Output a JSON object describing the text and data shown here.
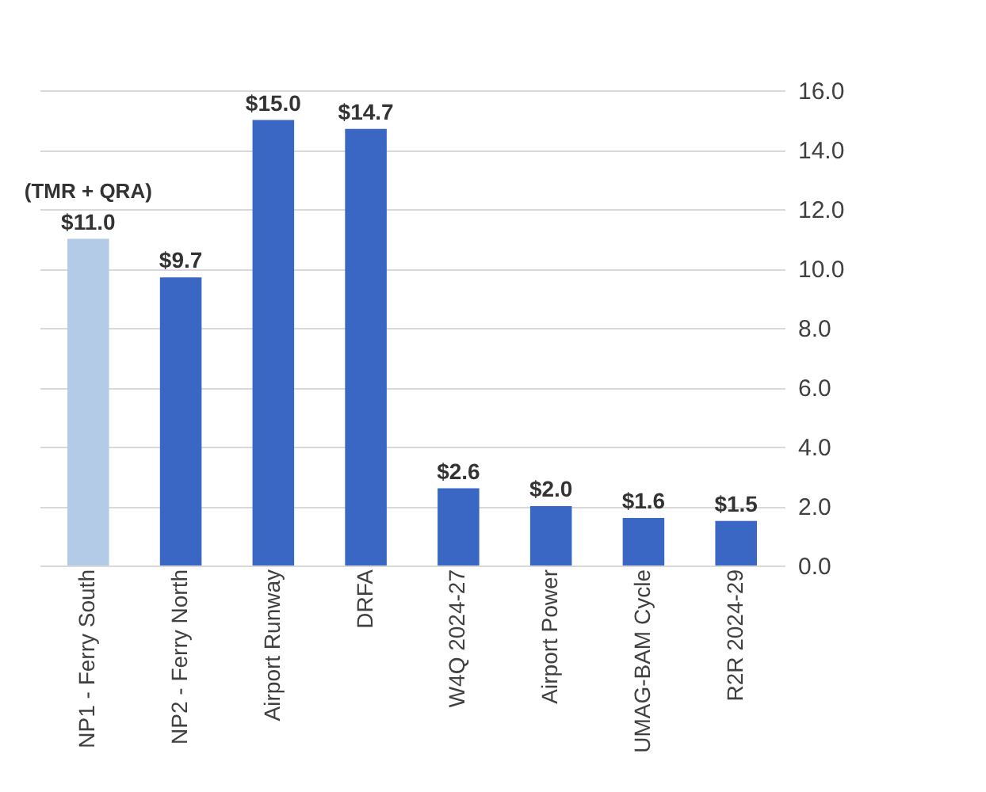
{
  "chart_data": {
    "type": "bar",
    "categories": [
      "NP1 - Ferry South",
      "NP2 - Ferry North",
      "Airport Runway",
      "DRFA",
      "W4Q 2024-27",
      "Airport Power",
      "UMAG-BAM Cycle",
      "R2R 2024-29"
    ],
    "values": [
      11.0,
      9.7,
      15.0,
      14.7,
      2.6,
      2.0,
      1.6,
      1.5
    ],
    "colors": [
      "#b4cbe8",
      "#3a66c4",
      "#3a66c4",
      "#3a66c4",
      "#3a66c4",
      "#3a66c4",
      "#3a66c4",
      "#3a66c4"
    ],
    "value_labels": [
      "$11.0",
      "$9.7",
      "$15.0",
      "$14.7",
      "$2.6",
      "$2.0",
      "$1.6",
      "$1.5"
    ],
    "annotations": [
      {
        "text": "(TMR + QRA)",
        "x": "NP1 - Ferry South",
        "y": 11.0
      }
    ],
    "ylim": [
      0,
      16
    ],
    "yticks": [
      {
        "value": 0,
        "label": "0.0"
      },
      {
        "value": 2,
        "label": "2.0"
      },
      {
        "value": 4,
        "label": "4.0"
      },
      {
        "value": 6,
        "label": "6.0"
      },
      {
        "value": 8,
        "label": "8.0"
      },
      {
        "value": 10,
        "label": "10.0"
      },
      {
        "value": 12,
        "label": "12.0"
      },
      {
        "value": 14,
        "label": "14.0"
      },
      {
        "value": 16,
        "label": "16.0"
      }
    ],
    "grid": true
  }
}
